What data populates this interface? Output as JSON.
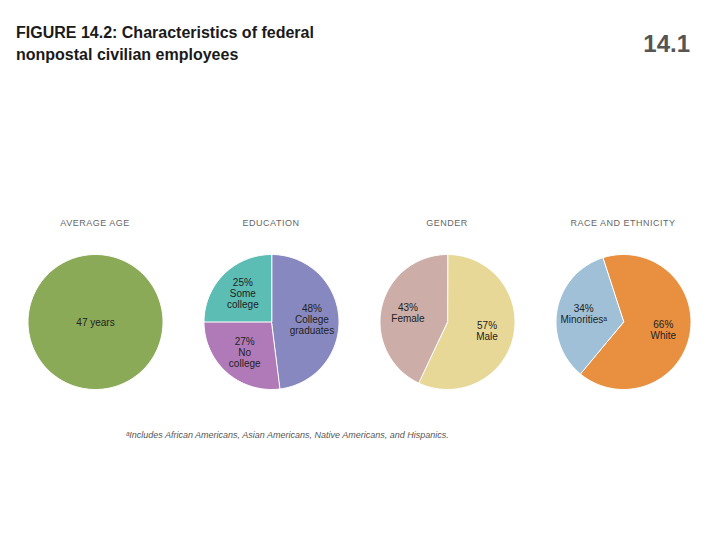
{
  "title": "FIGURE 14.2: Characteristics of federal\nnonpostal civilian employees",
  "annotations": [
    "14.1"
  ],
  "caption": "ᵃIncludes African Americans, Asian Americans, Native Americans, and Hispanics.",
  "chart_data": [
    {
      "type": "pie",
      "title": "AVERAGE AGE",
      "values": [
        47
      ],
      "value_labels": [
        "47 years"
      ],
      "colors": [
        "#8aaa58"
      ],
      "data_labels": true
    },
    {
      "type": "pie",
      "title": "EDUCATION",
      "categories": [
        "College\ngraduates",
        "No\ncollege",
        "Some\ncollege"
      ],
      "values": [
        48,
        27,
        25
      ],
      "value_labels": [
        "48%",
        "27%",
        "25%"
      ],
      "colors": [
        "#8888c0",
        "#b07ab8",
        "#5cbdb5"
      ],
      "data_labels": true
    },
    {
      "type": "pie",
      "title": "GENDER",
      "categories": [
        "Male",
        "Female"
      ],
      "values": [
        57,
        43
      ],
      "value_labels": [
        "57%",
        "43%"
      ],
      "colors": [
        "#e8d898",
        "#ccada8"
      ],
      "data_labels": true
    },
    {
      "type": "pie",
      "title": "RACE AND ETHNICITY",
      "categories": [
        "White",
        "Minoritiesᵃ"
      ],
      "values": [
        66,
        34
      ],
      "value_labels": [
        "66%",
        "34%"
      ],
      "colors": [
        "#e89040",
        "#a0c0d8"
      ],
      "data_labels": true
    }
  ]
}
